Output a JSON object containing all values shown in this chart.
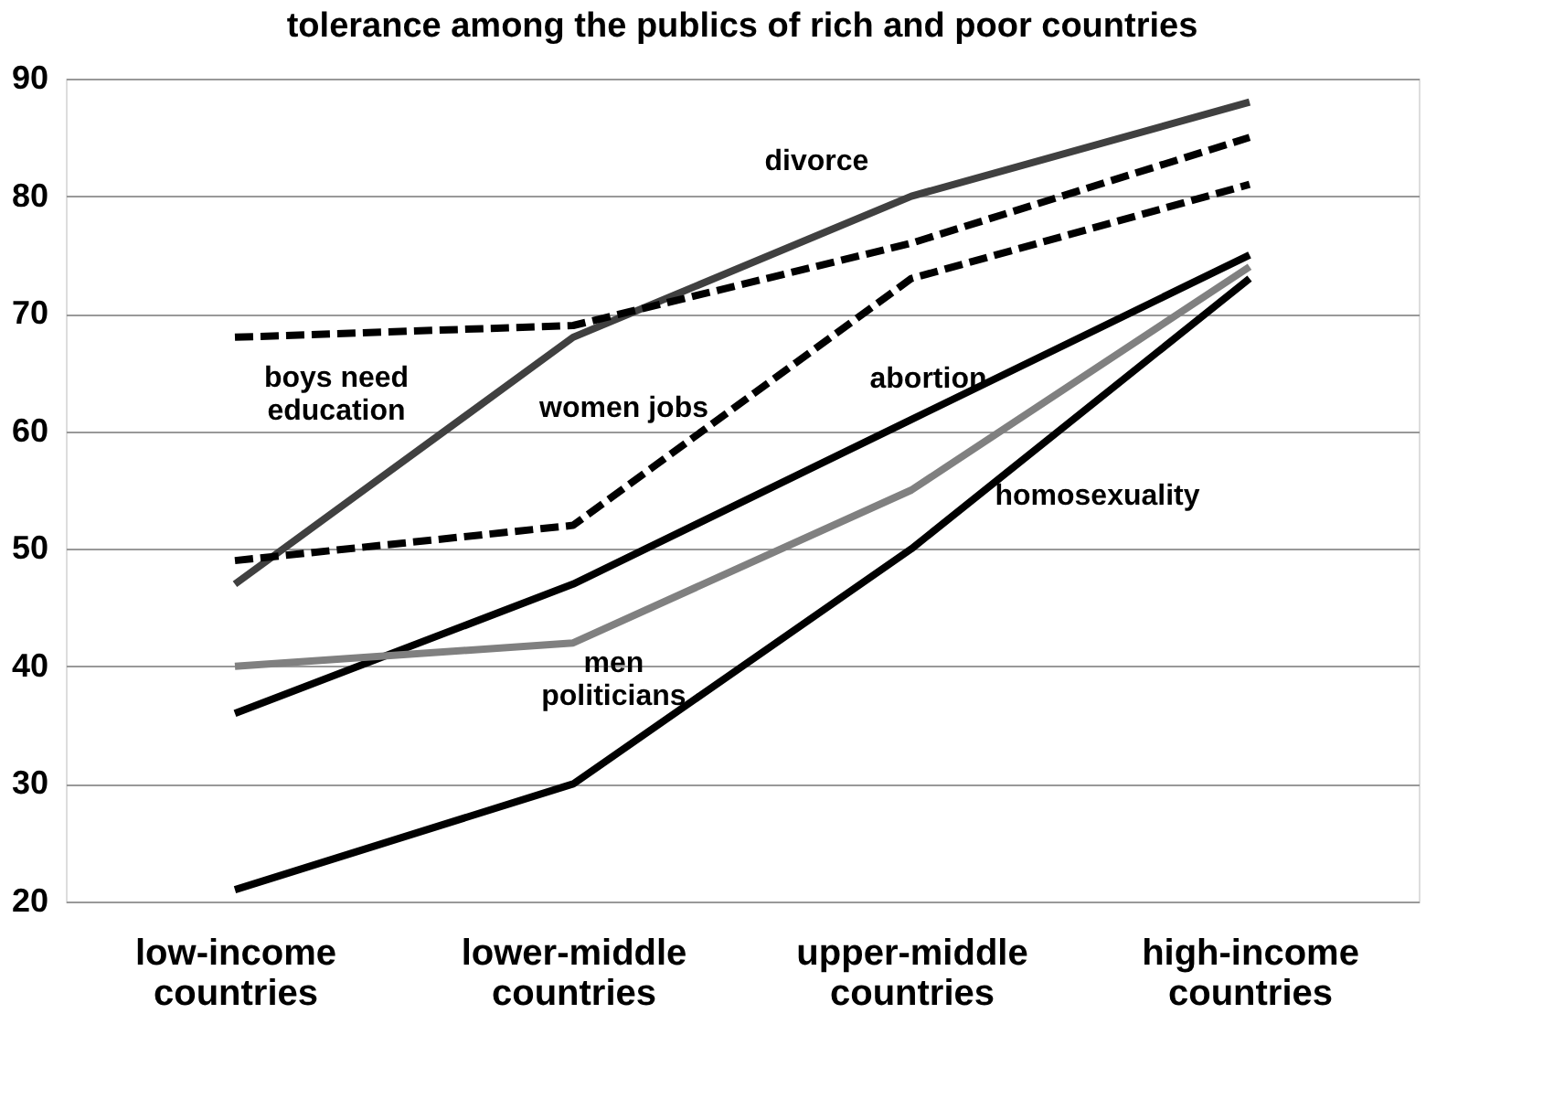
{
  "chart_data": {
    "type": "line",
    "title": "tolerance  among the publics of rich and poor countries",
    "categories": [
      "low-income\ncountries",
      "lower-middle\ncountries",
      "upper-middle\ncountries",
      "high-income\ncountries"
    ],
    "series": [
      {
        "name": "divorce",
        "color": "#404040",
        "values": [
          47,
          68,
          80,
          88
        ],
        "line_style": "solid"
      },
      {
        "name": "boys need\neducation",
        "color": "#000000",
        "values": [
          68,
          69,
          76,
          85
        ],
        "line_style": "dashed"
      },
      {
        "name": "women jobs",
        "color": "#000000",
        "values": [
          49,
          52,
          73,
          81
        ],
        "line_style": "dashed"
      },
      {
        "name": "abortion",
        "color": "#000000",
        "values": [
          36,
          47,
          61,
          75
        ],
        "line_style": "solid"
      },
      {
        "name": "men\npoliticians",
        "color": "#808080",
        "values": [
          40,
          42,
          55,
          74
        ],
        "line_style": "solid"
      },
      {
        "name": "homosexuality",
        "color": "#000000",
        "values": [
          21,
          30,
          50,
          73
        ],
        "line_style": "solid"
      }
    ],
    "ylim": [
      20,
      90
    ],
    "yticks": [
      20,
      30,
      40,
      50,
      60,
      70,
      80,
      90
    ],
    "grid": "y",
    "legend": false,
    "marker": "none"
  }
}
